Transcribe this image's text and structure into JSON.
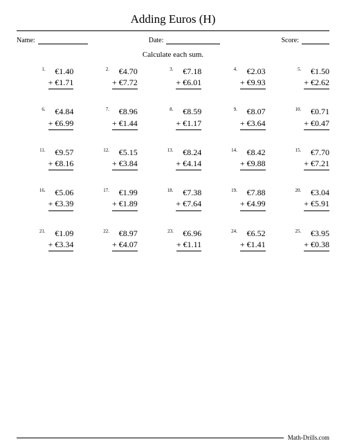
{
  "title": "Adding Euros (H)",
  "labels": {
    "name": "Name:",
    "date": "Date:",
    "score": "Score:"
  },
  "instruction": "Calculate each sum.",
  "footer": "Math-Drills.com",
  "currency": "€",
  "op": "+",
  "problems": [
    {
      "n": "1.",
      "a": "1.40",
      "b": "1.71"
    },
    {
      "n": "2.",
      "a": "4.70",
      "b": "7.72"
    },
    {
      "n": "3.",
      "a": "7.18",
      "b": "6.01"
    },
    {
      "n": "4.",
      "a": "2.03",
      "b": "9.93"
    },
    {
      "n": "5.",
      "a": "1.50",
      "b": "2.62"
    },
    {
      "n": "6.",
      "a": "4.84",
      "b": "6.99"
    },
    {
      "n": "7.",
      "a": "8.96",
      "b": "1.44"
    },
    {
      "n": "8.",
      "a": "8.59",
      "b": "1.17"
    },
    {
      "n": "9.",
      "a": "8.07",
      "b": "3.64"
    },
    {
      "n": "10.",
      "a": "0.71",
      "b": "0.47"
    },
    {
      "n": "11.",
      "a": "9.57",
      "b": "8.16"
    },
    {
      "n": "12.",
      "a": "5.15",
      "b": "3.84"
    },
    {
      "n": "13.",
      "a": "8.24",
      "b": "4.14"
    },
    {
      "n": "14.",
      "a": "8.42",
      "b": "9.88"
    },
    {
      "n": "15.",
      "a": "7.70",
      "b": "7.21"
    },
    {
      "n": "16.",
      "a": "5.06",
      "b": "3.39"
    },
    {
      "n": "17.",
      "a": "1.99",
      "b": "1.89"
    },
    {
      "n": "18.",
      "a": "7.38",
      "b": "7.64"
    },
    {
      "n": "19.",
      "a": "7.88",
      "b": "4.99"
    },
    {
      "n": "20.",
      "a": "3.04",
      "b": "5.91"
    },
    {
      "n": "21.",
      "a": "1.09",
      "b": "3.34"
    },
    {
      "n": "22.",
      "a": "8.97",
      "b": "4.07"
    },
    {
      "n": "23.",
      "a": "6.96",
      "b": "1.11"
    },
    {
      "n": "24.",
      "a": "6.52",
      "b": "1.41"
    },
    {
      "n": "25.",
      "a": "3.95",
      "b": "0.38"
    }
  ]
}
